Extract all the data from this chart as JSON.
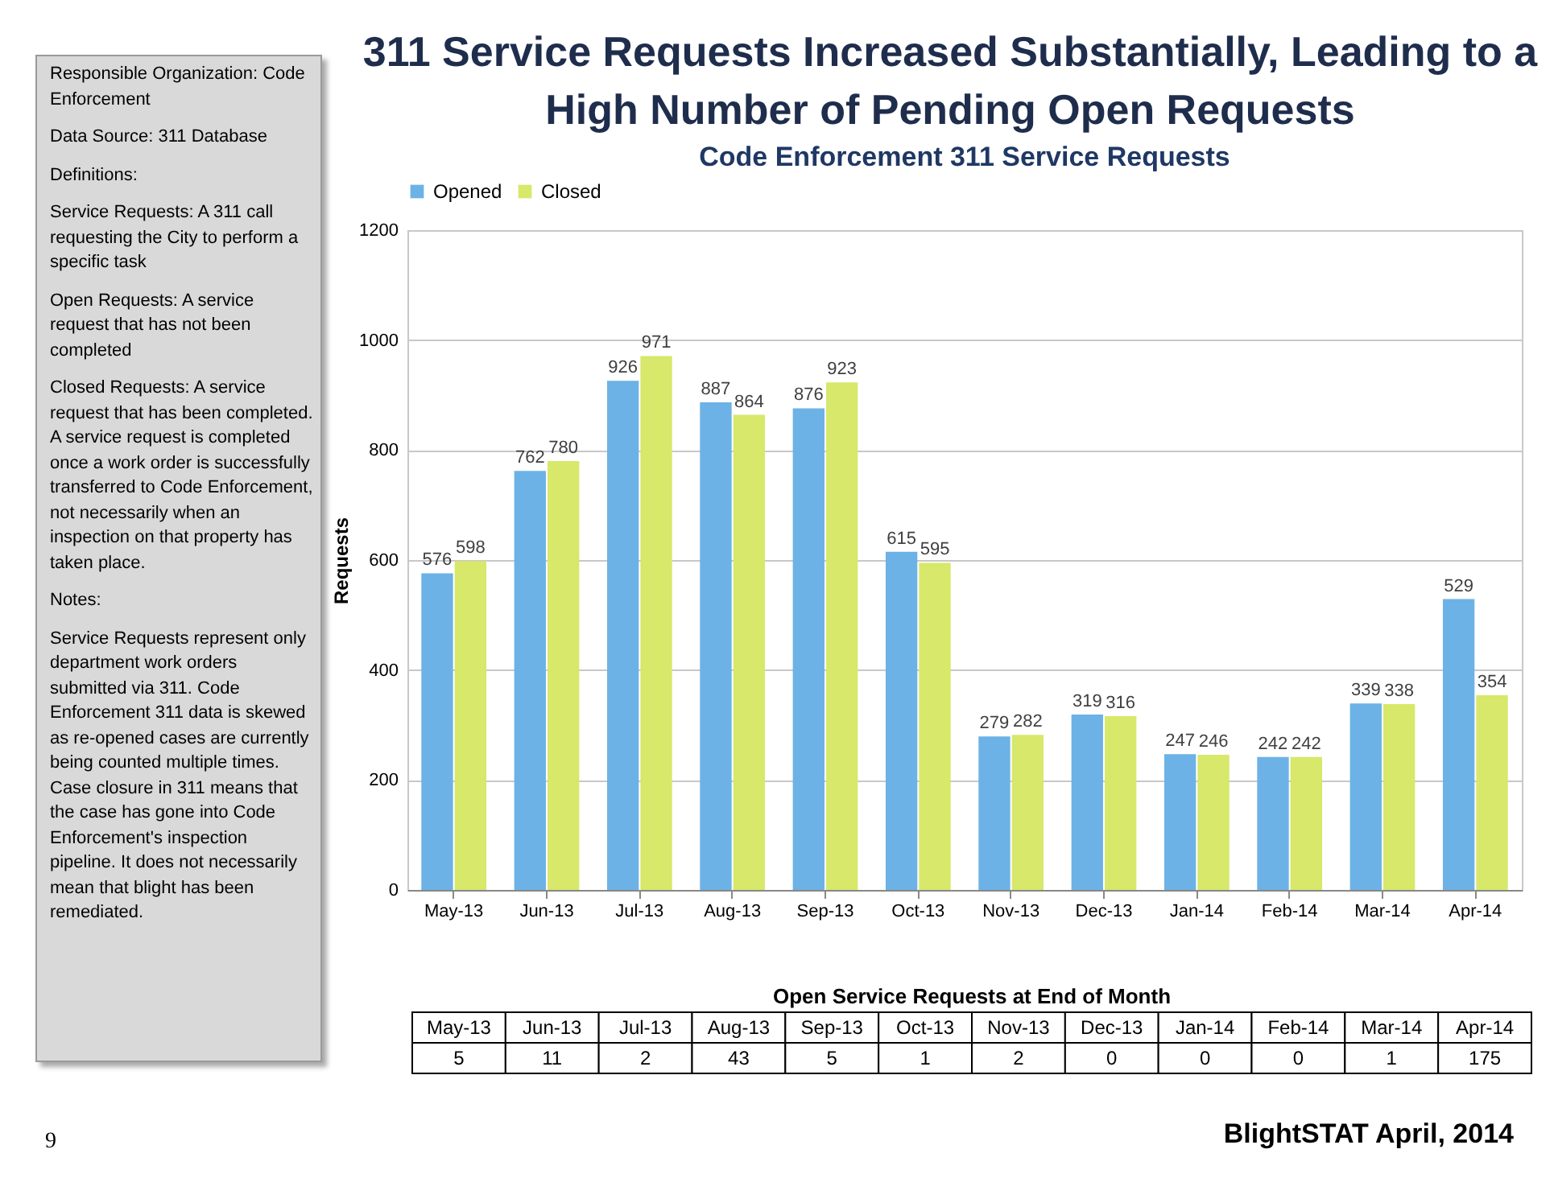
{
  "chart_data": [
    {
      "type": "bar",
      "title": "311 Service Requests Increased Substantially, Leading to a High Number of Pending Open Requests",
      "subtitle": "Code Enforcement 311 Service Requests",
      "ylabel": "Requests",
      "categories": [
        "May-13",
        "Jun-13",
        "Jul-13",
        "Aug-13",
        "Sep-13",
        "Oct-13",
        "Nov-13",
        "Dec-13",
        "Jan-14",
        "Feb-14",
        "Mar-14",
        "Apr-14"
      ],
      "series": [
        {
          "name": "Opened",
          "color": "#6cb2e6",
          "values": [
            576,
            762,
            926,
            887,
            876,
            615,
            279,
            319,
            247,
            242,
            339,
            529
          ]
        },
        {
          "name": "Closed",
          "color": "#d7e86a",
          "values": [
            598,
            780,
            971,
            864,
            923,
            595,
            282,
            316,
            246,
            242,
            338,
            354
          ]
        }
      ],
      "ylim": [
        0,
        1200
      ],
      "yticks": [
        0,
        200,
        400,
        600,
        800,
        1000,
        1200
      ],
      "grid": "y",
      "legend": "top",
      "data_labels": true,
      "annotations": [
        "9",
        "BlightSTAT April, 2014"
      ]
    },
    {
      "type": "other",
      "title": "Open Service Requests at End of Month",
      "categories": [
        "May-13",
        "Jun-13",
        "Jul-13",
        "Aug-13",
        "Sep-13",
        "Oct-13",
        "Nov-13",
        "Dec-13",
        "Jan-14",
        "Feb-14",
        "Mar-14",
        "Apr-14"
      ],
      "values": [
        5,
        11,
        2,
        43,
        5,
        1,
        2,
        0,
        0,
        0,
        1,
        175
      ],
      "data_labels": true
    },
    {
      "type": "other",
      "annotations": [
        "Responsible Organization: Code Enforcement",
        "Data Source: 311 Database",
        "Definitions:",
        "Service Requests: A 311 call requesting the City to perform a specific task",
        "Open Requests: A service request that has not been completed",
        "Closed Requests: A service request that has been completed. A service request is completed once a work order is successfully transferred to Code Enforcement, not necessarily when an inspection on that property has taken place.",
        "Notes:",
        "Service Requests represent only department work orders submitted via 311. Code Enforcement 311 data is skewed as re-opened cases are currently being counted multiple times. Case closure in 311 means that the case has gone into Code Enforcement's inspection pipeline. It does not necessarily mean that blight has been remediated."
      ]
    }
  ]
}
